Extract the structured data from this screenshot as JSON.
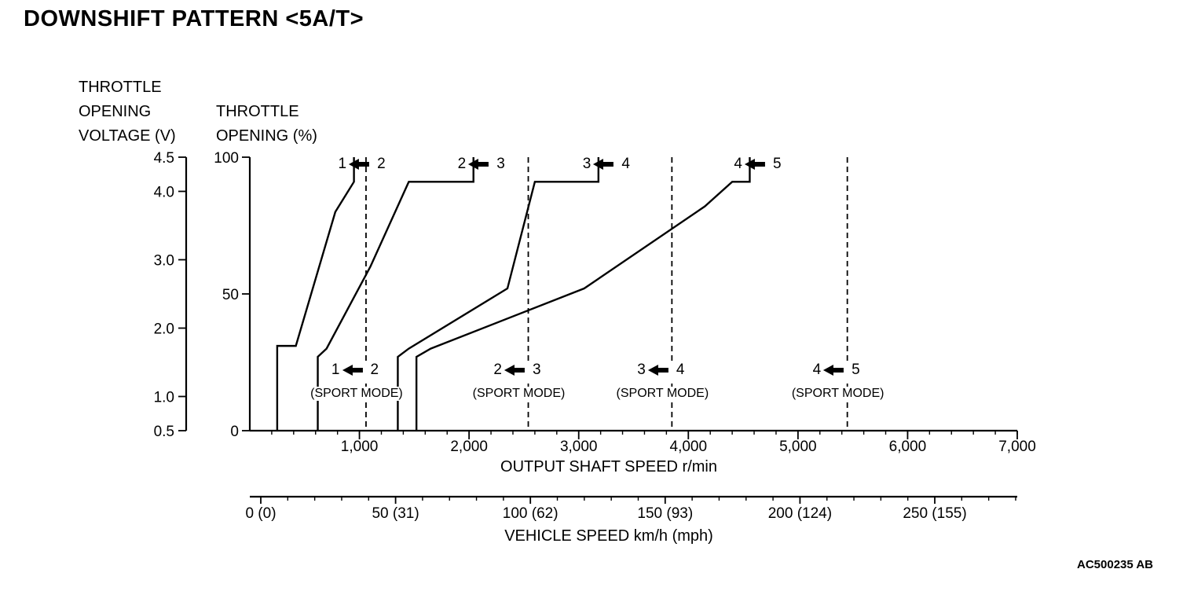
{
  "page": {
    "title": "DOWNSHIFT PATTERN <5A/T>",
    "figure_code": "AC500235 AB"
  },
  "chart_data": {
    "type": "line",
    "title": "DOWNSHIFT PATTERN <5A/T>",
    "axes": {
      "throttle_voltage": {
        "title_lines": [
          "THROTTLE",
          "OPENING",
          "VOLTAGE (V)"
        ],
        "min": 0.5,
        "max": 4.5,
        "ticks": [
          {
            "v": 4.5,
            "label": "4.5"
          },
          {
            "v": 4.0,
            "label": "4.0"
          },
          {
            "v": 3.0,
            "label": "3.0"
          },
          {
            "v": 2.0,
            "label": "2.0"
          },
          {
            "v": 1.0,
            "label": "1.0"
          },
          {
            "v": 0.5,
            "label": "0.5"
          }
        ]
      },
      "throttle_pct": {
        "title_lines": [
          "THROTTLE",
          "OPENING (%)"
        ],
        "min": 0,
        "max": 100,
        "ticks": [
          {
            "v": 100,
            "label": "100"
          },
          {
            "v": 50,
            "label": "50"
          },
          {
            "v": 0,
            "label": "0"
          }
        ]
      },
      "output_shaft": {
        "title": "OUTPUT SHAFT SPEED r/min",
        "min": 0,
        "max": 7000,
        "minor_step": 200,
        "ticks": [
          {
            "v": 1000,
            "label": "1,000"
          },
          {
            "v": 2000,
            "label": "2,000"
          },
          {
            "v": 3000,
            "label": "3,000"
          },
          {
            "v": 4000,
            "label": "4,000"
          },
          {
            "v": 5000,
            "label": "5,000"
          },
          {
            "v": 6000,
            "label": "6,000"
          },
          {
            "v": 7000,
            "label": "7,000"
          }
        ]
      },
      "vehicle_speed": {
        "title": "VEHICLE SPEED km/h (mph)",
        "min": 0,
        "max": 280,
        "minor_step": 10,
        "major_step": 50,
        "ticks": [
          {
            "v": 0,
            "label": "0 (0)"
          },
          {
            "v": 50,
            "label": "50 (31)"
          },
          {
            "v": 100,
            "label": "100 (62)"
          },
          {
            "v": 150,
            "label": "150 (93)"
          },
          {
            "v": 200,
            "label": "200 (124)"
          },
          {
            "v": 250,
            "label": "250 (155)"
          }
        ]
      }
    },
    "series": [
      {
        "name": "1<-2 downshift",
        "points": [
          [
            250,
            0
          ],
          [
            250,
            31
          ],
          [
            420,
            31
          ],
          [
            780,
            80
          ],
          [
            950,
            91
          ],
          [
            950,
            100
          ]
        ]
      },
      {
        "name": "2<-3 downshift",
        "points": [
          [
            620,
            0
          ],
          [
            620,
            27
          ],
          [
            700,
            30
          ],
          [
            1100,
            60
          ],
          [
            1450,
            91
          ],
          [
            2040,
            91
          ],
          [
            2040,
            100
          ]
        ]
      },
      {
        "name": "3<-4 downshift",
        "points": [
          [
            1350,
            0
          ],
          [
            1350,
            27
          ],
          [
            1450,
            30
          ],
          [
            2350,
            52
          ],
          [
            2600,
            91
          ],
          [
            3180,
            91
          ],
          [
            3180,
            100
          ]
        ]
      },
      {
        "name": "4<-5 downshift",
        "points": [
          [
            1520,
            0
          ],
          [
            1520,
            27
          ],
          [
            1650,
            30
          ],
          [
            3050,
            52
          ],
          [
            4150,
            82
          ],
          [
            4400,
            91
          ],
          [
            4560,
            91
          ],
          [
            4560,
            100
          ]
        ]
      }
    ],
    "sport_mode_lines": [
      1060,
      2540,
      3850,
      5450
    ],
    "shift_labels_top": [
      {
        "left": "1",
        "right": "2",
        "x": 950
      },
      {
        "left": "2",
        "right": "3",
        "x": 2040
      },
      {
        "left": "3",
        "right": "4",
        "x": 3180
      },
      {
        "left": "4",
        "right": "5",
        "x": 4560
      }
    ],
    "shift_labels_sport": [
      {
        "left": "1",
        "right": "2",
        "x": 1060,
        "sub": "(SPORT MODE)"
      },
      {
        "left": "2",
        "right": "3",
        "x": 2540,
        "sub": "(SPORT MODE)"
      },
      {
        "left": "3",
        "right": "4",
        "x": 3850,
        "sub": "(SPORT MODE)"
      },
      {
        "left": "4",
        "right": "5",
        "x": 5450,
        "sub": "(SPORT MODE)"
      }
    ],
    "colors": {
      "line": "#000000",
      "background": "#ffffff"
    }
  }
}
